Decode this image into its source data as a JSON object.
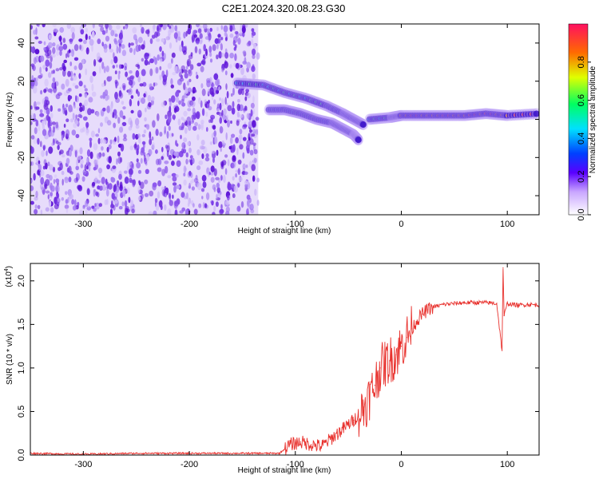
{
  "title": "C2E1.2024.320.08.23.G30",
  "colors": {
    "snr_line": "#e8302c",
    "frame": "#000000",
    "spectrogram_purple": "#6a1bd8",
    "spectrogram_light": "#e7dcfb"
  },
  "chart_data": [
    {
      "type": "heatmap",
      "title": "C2E1.2024.320.08.23.G30",
      "xlabel": "Height of straight line (km)",
      "ylabel": "Frequency (Hz)",
      "xlim": [
        -350,
        130
      ],
      "ylim": [
        -50,
        50
      ],
      "x_ticks": [
        -300,
        -200,
        -100,
        0,
        100
      ],
      "y_ticks": [
        -40,
        -20,
        0,
        20,
        40
      ],
      "grid": false,
      "noise_region": {
        "x_range": [
          -350,
          -135
        ],
        "y_range": [
          -50,
          50
        ]
      },
      "signal_tracks": [
        {
          "name": "",
          "x": [
            -155,
            -130,
            -110,
            -90,
            -70,
            -55,
            -45,
            -35
          ],
          "y": [
            19,
            18,
            14,
            11,
            7,
            3,
            0,
            -3
          ]
        },
        {
          "name": "",
          "x": [
            -125,
            -110,
            -95,
            -80,
            -65,
            -55,
            -45,
            -40
          ],
          "y": [
            5,
            5,
            3,
            0,
            -2,
            -5,
            -8,
            -11
          ]
        },
        {
          "name": "",
          "x": [
            -30,
            -10,
            0,
            20,
            40,
            60,
            80,
            100,
            130
          ],
          "y": [
            0,
            1,
            2,
            2,
            2,
            2,
            3,
            2,
            3
          ]
        }
      ],
      "colorbar": {
        "label": "Normalized spectral amplitude",
        "range": [
          0,
          1
        ],
        "ticks": [
          "0.0",
          "0.2",
          "0.4",
          "0.6",
          "0.8"
        ]
      }
    },
    {
      "type": "line",
      "xlabel": "Height of straight line (km)",
      "ylabel": "SNR (10 * v/v)",
      "y_multiplier_label": "(x10",
      "y_multiplier_exp": "4",
      "y_multiplier_close": ")",
      "xlim": [
        -350,
        130
      ],
      "ylim": [
        0,
        2.2
      ],
      "x_ticks": [
        -300,
        -200,
        -100,
        0,
        100
      ],
      "y_tick_labels": [
        "0.0",
        "0.5",
        "1.0",
        "1.5",
        "2.0"
      ],
      "y_ticks": [
        0,
        0.5,
        1.0,
        1.5,
        2.0
      ],
      "grid": false,
      "series": [
        {
          "name": "",
          "x": [
            -350,
            -300,
            -250,
            -200,
            -150,
            -115,
            -105,
            -95,
            -85,
            -75,
            -65,
            -55,
            -45,
            -35,
            -25,
            -20,
            -15,
            -10,
            -5,
            0,
            5,
            10,
            15,
            20,
            25,
            30,
            40,
            50,
            60,
            70,
            80,
            90,
            95,
            96,
            97,
            100,
            110,
            120,
            130
          ],
          "y": [
            0.02,
            0.01,
            0.02,
            0.02,
            0.02,
            0.02,
            0.12,
            0.15,
            0.12,
            0.1,
            0.2,
            0.3,
            0.4,
            0.55,
            0.8,
            1.0,
            1.05,
            1.1,
            1.15,
            1.25,
            1.35,
            1.45,
            1.55,
            1.62,
            1.67,
            1.7,
            1.73,
            1.74,
            1.75,
            1.75,
            1.75,
            1.74,
            1.2,
            2.15,
            1.6,
            1.74,
            1.72,
            1.73,
            1.72
          ]
        }
      ]
    }
  ]
}
